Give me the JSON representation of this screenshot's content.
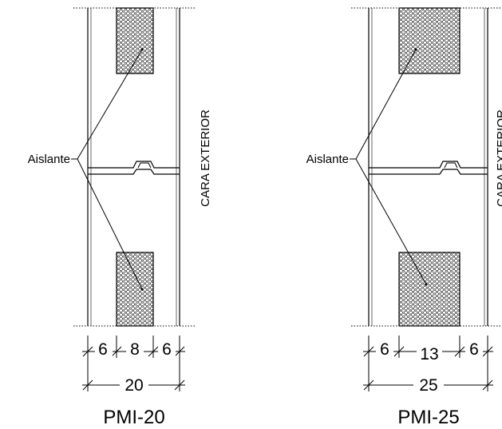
{
  "sections": [
    {
      "title": "PMI-20",
      "insulation_label": "Aislante",
      "face_label": "CARA EXTERIOR",
      "dims": [
        "6",
        "8",
        "6"
      ],
      "total": "20"
    },
    {
      "title": "PMI-25",
      "insulation_label": "Aislante",
      "face_label": "CARA EXTERIOR",
      "dims": [
        "6",
        "13",
        "6"
      ],
      "total": "25"
    }
  ]
}
